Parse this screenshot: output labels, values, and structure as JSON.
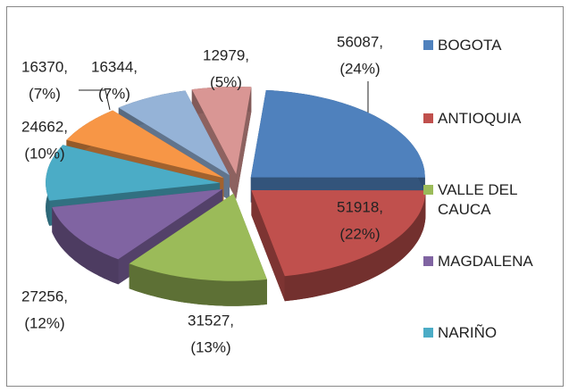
{
  "chart_data": {
    "type": "pie3d",
    "categories": [
      "BOGOTA",
      "ANTIOQUIA",
      "VALLE DEL CAUCA",
      "MAGDALENA",
      "NARIÑO",
      null,
      null,
      null
    ],
    "values": [
      56087,
      51918,
      31527,
      27256,
      24662,
      16370,
      16344,
      12979
    ],
    "value_labels": [
      "56087,",
      "51918,",
      "31527,",
      "27256,",
      "24662,",
      "16370,",
      "16344,",
      "12979,"
    ],
    "percents": [
      24,
      22,
      13,
      12,
      10,
      7,
      7,
      5
    ],
    "percent_labels": [
      "(24%)",
      "(22%)",
      "(13%)",
      "(12%)",
      "(10%)",
      "(7%)",
      "(7%)",
      "(5%)"
    ],
    "colors": [
      "#4f81bd",
      "#c0504d",
      "#9bbb59",
      "#8064a2",
      "#4bacc6",
      "#f79646",
      "#95b3d7",
      "#d99694"
    ],
    "legend": "right"
  }
}
